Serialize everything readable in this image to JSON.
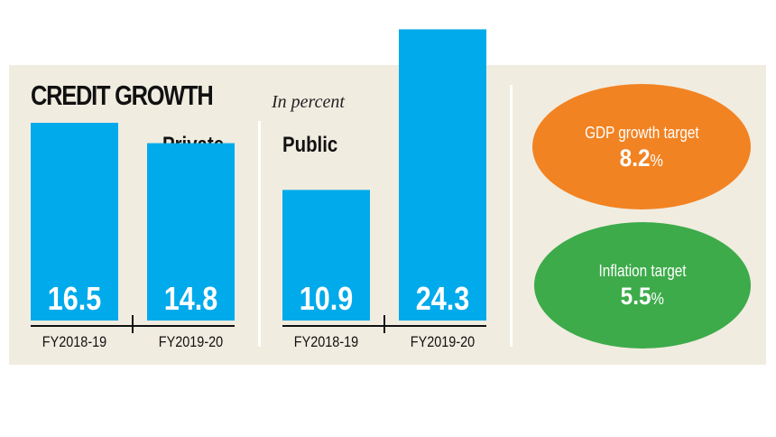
{
  "chart_data": {
    "type": "bar",
    "title": "CREDIT GROWTH",
    "subtitle": "In percent",
    "xlabel": "",
    "ylabel": "",
    "categories": [
      "FY2018-19",
      "FY2019-20"
    ],
    "groups": [
      {
        "name": "Private",
        "categories": [
          "FY2018-19",
          "FY2019-20"
        ],
        "values": [
          16.5,
          14.8
        ]
      },
      {
        "name": "Public",
        "categories": [
          "FY2018-19",
          "FY2019-20"
        ],
        "values": [
          10.9,
          24.3
        ]
      }
    ],
    "bar_color": "#00aaeb",
    "ylim": [
      0,
      25
    ],
    "grid": false
  },
  "targets": [
    {
      "label": "GDP growth target",
      "value": "8.2",
      "unit": "%",
      "color": "#f28322"
    },
    {
      "label": "Inflation target",
      "value": "5.5",
      "unit": "%",
      "color": "#3dab4a"
    }
  ]
}
